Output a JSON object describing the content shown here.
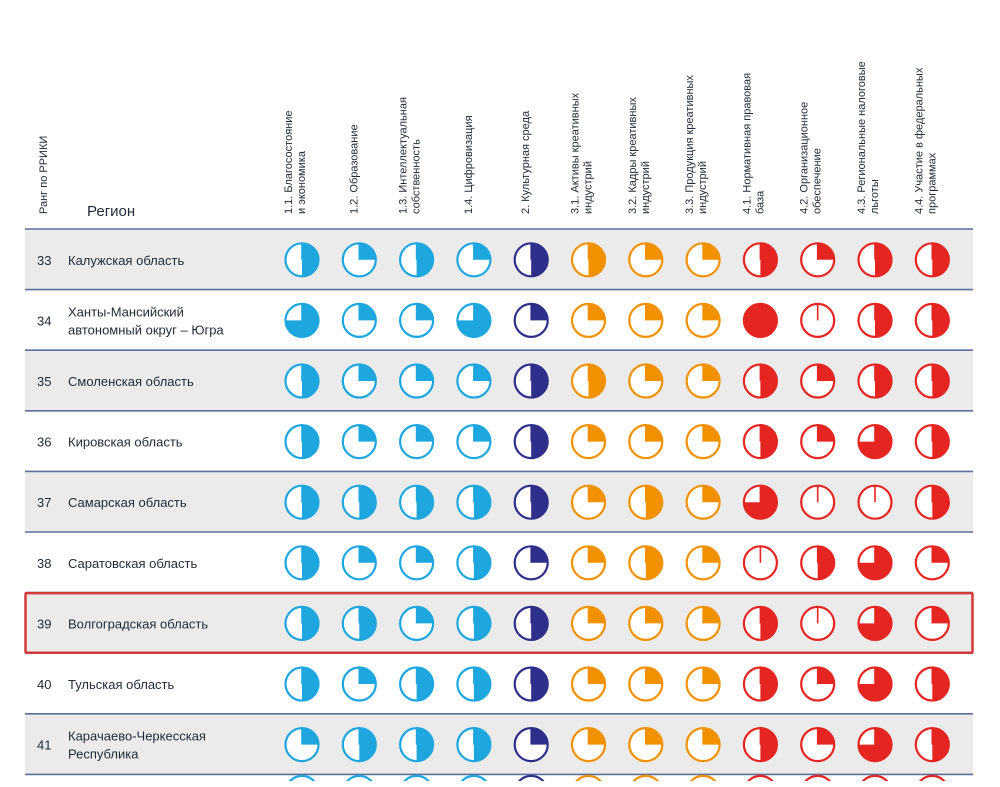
{
  "chart_data": {
    "type": "table",
    "title": "",
    "rank_header": "Ранг по РРИКИ",
    "region_header": "Регион",
    "columns": [
      {
        "label": [
          "1.1. Благосостояние",
          "и экономика"
        ],
        "group": "blue"
      },
      {
        "label": [
          "1.2. Образование"
        ],
        "group": "blue"
      },
      {
        "label": [
          "1.3. Интеллектуальная",
          "собственность"
        ],
        "group": "blue"
      },
      {
        "label": [
          "1.4. Цифровизация"
        ],
        "group": "blue"
      },
      {
        "label": [
          "2. Культурная среда"
        ],
        "group": "navy"
      },
      {
        "label": [
          "3.1. Активы креативных",
          "индустрий"
        ],
        "group": "orange"
      },
      {
        "label": [
          "3.2. Кадры креативных",
          "индустрий"
        ],
        "group": "orange"
      },
      {
        "label": [
          "3.3. Продукция креативных",
          "индустрий"
        ],
        "group": "orange"
      },
      {
        "label": [
          "4.1. Нормативная правовая",
          "база"
        ],
        "group": "red"
      },
      {
        "label": [
          "4.2. Организационное",
          "обеспечение"
        ],
        "group": "red"
      },
      {
        "label": [
          "4.3. Региональные налоговые",
          "льготы"
        ],
        "group": "red"
      },
      {
        "label": [
          "4.4. Участие в федеральных",
          "программах"
        ],
        "group": "red"
      }
    ],
    "colors": {
      "blue": "#1ea6df",
      "navy": "#2e2f8a",
      "orange": "#f29100",
      "red": "#e52521",
      "row_alt": "#ebebeb",
      "row_line": "#5b6f9e",
      "highlight": "#d23a3a"
    },
    "value_scale": "quarters filled (0–4)",
    "rows": [
      {
        "rank": "33",
        "region": [
          "Калужская область"
        ],
        "values": [
          2,
          1,
          2,
          1,
          2,
          2,
          1,
          1,
          2,
          1,
          2,
          2
        ]
      },
      {
        "rank": "34",
        "region": [
          "Ханты-Мансийский",
          "автономный округ – Югра"
        ],
        "values": [
          3,
          1,
          1,
          3,
          1,
          1,
          1,
          1,
          4,
          0,
          2,
          2
        ]
      },
      {
        "rank": "35",
        "region": [
          "Смоленская область"
        ],
        "values": [
          2,
          1,
          1,
          1,
          2,
          2,
          1,
          1,
          2,
          1,
          2,
          2
        ]
      },
      {
        "rank": "36",
        "region": [
          "Кировская область"
        ],
        "values": [
          2,
          1,
          1,
          1,
          2,
          1,
          1,
          1,
          2,
          1,
          3,
          2
        ]
      },
      {
        "rank": "37",
        "region": [
          "Самарская область"
        ],
        "values": [
          2,
          2,
          2,
          2,
          2,
          1,
          2,
          1,
          3,
          0,
          0,
          2
        ]
      },
      {
        "rank": "38",
        "region": [
          "Саратовская область"
        ],
        "values": [
          2,
          1,
          1,
          2,
          1,
          1,
          2,
          1,
          0,
          2,
          3,
          1
        ]
      },
      {
        "rank": "39",
        "region": [
          "Волгоградская область"
        ],
        "values": [
          2,
          2,
          1,
          2,
          2,
          1,
          1,
          1,
          2,
          0,
          3,
          1
        ],
        "highlighted": true
      },
      {
        "rank": "40",
        "region": [
          "Тульская область"
        ],
        "values": [
          2,
          1,
          2,
          2,
          2,
          1,
          1,
          1,
          2,
          1,
          3,
          2
        ]
      },
      {
        "rank": "41",
        "region": [
          "Карачаево-Черкесская",
          "Республика"
        ],
        "values": [
          1,
          2,
          2,
          2,
          1,
          1,
          1,
          1,
          2,
          1,
          3,
          2
        ]
      }
    ]
  }
}
